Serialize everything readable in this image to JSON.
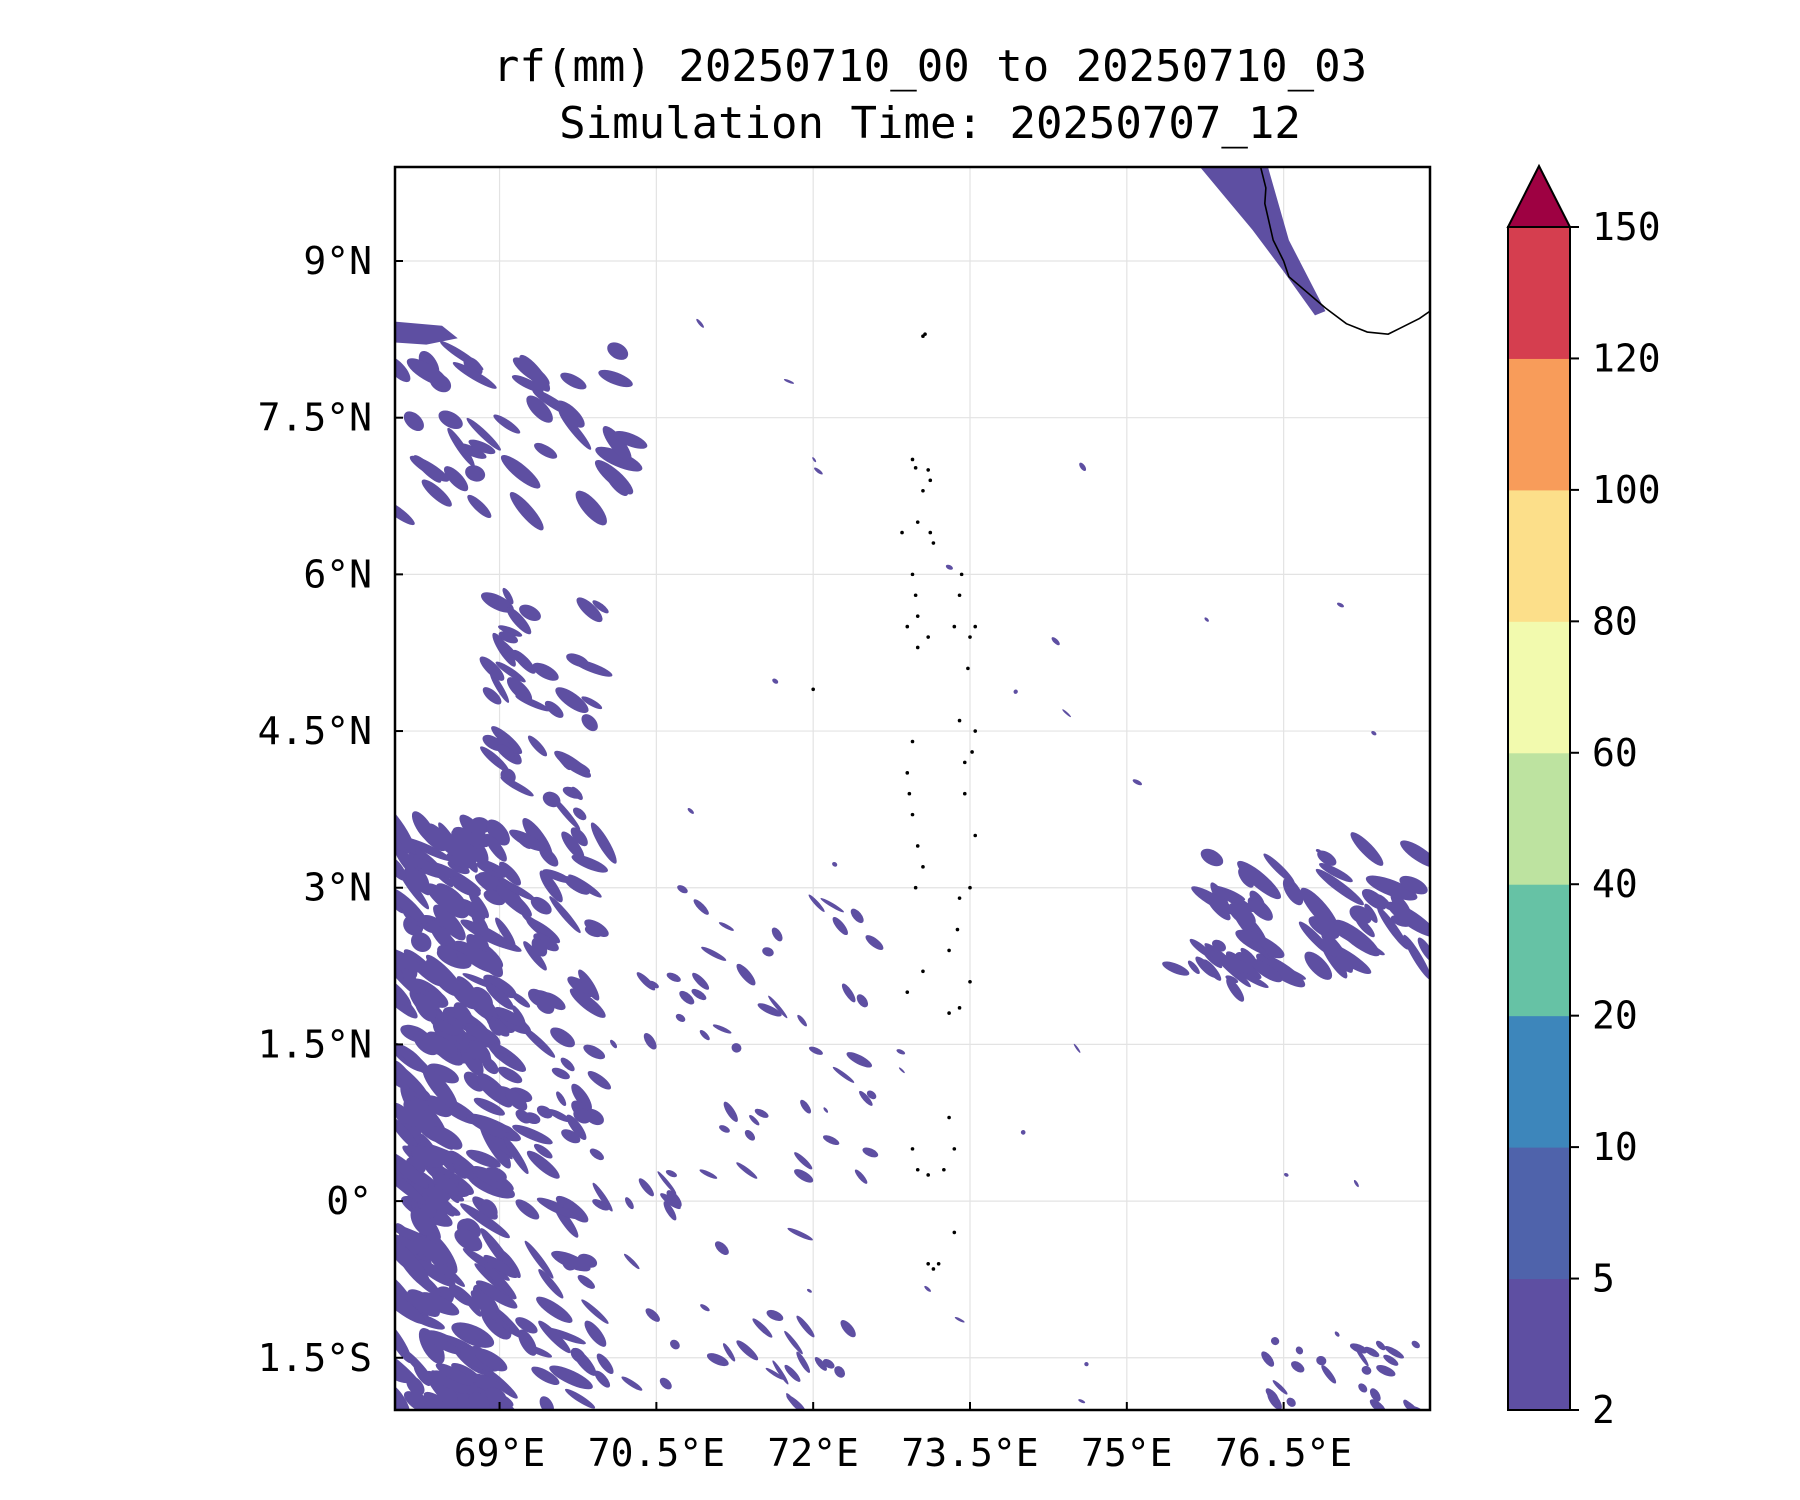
{
  "title": {
    "line1": "rf(mm) 20250710_00 to 20250710_03",
    "line2": "Simulation Time: 20250707_12"
  },
  "map": {
    "lon_range": [
      68.0,
      77.9
    ],
    "lat_range": [
      -2.0,
      9.9
    ],
    "grid_lines": true,
    "xtick_values": [
      69.0,
      70.5,
      72.0,
      73.5,
      75.0,
      76.5
    ],
    "xtick_labels": [
      "69°E",
      "70.5°E",
      "72°E",
      "73.5°E",
      "75°E",
      "76.5°E"
    ],
    "ytick_values": [
      9.0,
      7.5,
      6.0,
      4.5,
      3.0,
      1.5,
      0.0,
      -1.5
    ],
    "ytick_labels": [
      "9°N",
      "7.5°N",
      "6°N",
      "4.5°N",
      "3°N",
      "1.5°N",
      "0°",
      "1.5°S"
    ],
    "rain_color": "#5e4fa2",
    "coastline_color": "#000000"
  },
  "colorbar": {
    "extend": "max",
    "over_color": "#9e0142",
    "levels": [
      2,
      5,
      10,
      20,
      40,
      60,
      80,
      100,
      120,
      150
    ],
    "tick_labels": [
      "2",
      "5",
      "10",
      "20",
      "40",
      "60",
      "80",
      "100",
      "120",
      "150"
    ],
    "colors": [
      "#5e4fa2",
      "#4f63ab",
      "#3d86bb",
      "#66c2a5",
      "#bde3a0",
      "#f2faae",
      "#fcdf8a",
      "#f89c5a",
      "#d53e4f"
    ]
  }
}
